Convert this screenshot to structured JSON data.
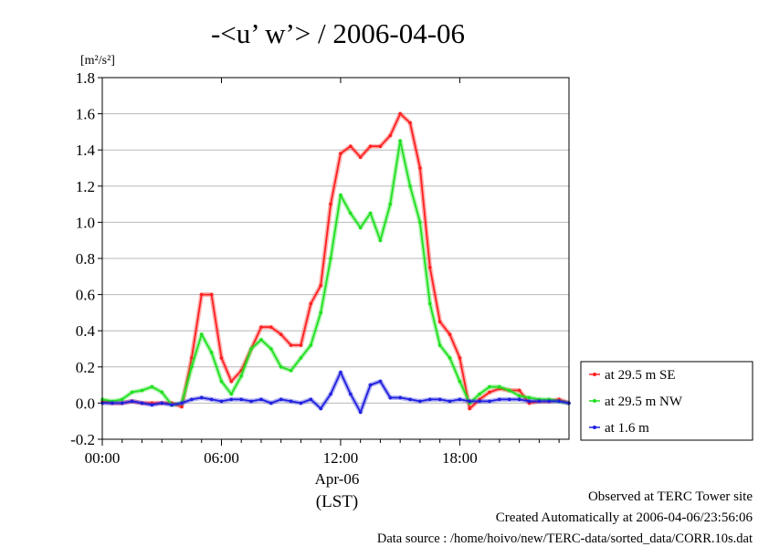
{
  "chart_data": {
    "type": "line",
    "title": "-<u’ w’> / 2006-04-06",
    "ylabel": "[m²/s²]",
    "xlabel": "Apr-06",
    "xlabel2": "(LST)",
    "ylim": [
      -0.2,
      1.8
    ],
    "xlim": [
      0,
      23.5
    ],
    "yticks": [
      "1.8",
      "1.6",
      "1.4",
      "1.2",
      "1.0",
      "0.8",
      "0.6",
      "0.4",
      "0.2",
      "0.0",
      "-0.2"
    ],
    "xticks": [
      "00:00",
      "06:00",
      "12:00",
      "18:00"
    ],
    "grid": true,
    "legend_position": "right",
    "x": [
      0,
      0.5,
      1,
      1.5,
      2,
      2.5,
      3,
      3.5,
      4,
      4.5,
      5,
      5.5,
      6,
      6.5,
      7,
      7.5,
      8,
      8.5,
      9,
      9.5,
      10,
      10.5,
      11,
      11.5,
      12,
      12.5,
      13,
      13.5,
      14,
      14.5,
      15,
      15.5,
      16,
      16.5,
      17,
      17.5,
      18,
      18.5,
      19,
      19.5,
      20,
      20.5,
      21,
      21.5,
      22,
      22.5,
      23,
      23.5
    ],
    "series": [
      {
        "name": "at 29.5 m SE",
        "color": "#ff2020",
        "values": [
          0.01,
          0.0,
          0.0,
          0.01,
          0.0,
          0.0,
          0.0,
          0.0,
          -0.02,
          0.25,
          0.6,
          0.6,
          0.25,
          0.12,
          0.18,
          0.3,
          0.42,
          0.42,
          0.38,
          0.32,
          0.32,
          0.55,
          0.65,
          1.1,
          1.38,
          1.42,
          1.36,
          1.42,
          1.42,
          1.48,
          1.6,
          1.55,
          1.3,
          0.75,
          0.45,
          0.38,
          0.25,
          -0.03,
          0.02,
          0.06,
          0.08,
          0.07,
          0.07,
          0.0,
          0.01,
          0.01,
          0.02,
          0.0
        ]
      },
      {
        "name": "at 29.5 m NW",
        "color": "#20e020",
        "values": [
          0.02,
          0.01,
          0.02,
          0.06,
          0.07,
          0.09,
          0.06,
          -0.01,
          0.0,
          0.2,
          0.38,
          0.28,
          0.12,
          0.05,
          0.15,
          0.3,
          0.35,
          0.3,
          0.2,
          0.18,
          0.25,
          0.32,
          0.5,
          0.8,
          1.15,
          1.05,
          0.97,
          1.05,
          0.9,
          1.1,
          1.45,
          1.2,
          1.0,
          0.55,
          0.32,
          0.25,
          0.12,
          0.0,
          0.05,
          0.09,
          0.09,
          0.07,
          0.04,
          0.03,
          0.02,
          0.02,
          0.01,
          0.0
        ]
      },
      {
        "name": "at 1.6 m",
        "color": "#2020e0",
        "values": [
          0.0,
          0.0,
          0.0,
          0.01,
          0.0,
          -0.01,
          0.0,
          -0.01,
          0.0,
          0.02,
          0.03,
          0.02,
          0.01,
          0.02,
          0.02,
          0.01,
          0.02,
          0.0,
          0.02,
          0.01,
          0.0,
          0.02,
          -0.03,
          0.05,
          0.17,
          0.05,
          -0.05,
          0.1,
          0.12,
          0.03,
          0.03,
          0.02,
          0.01,
          0.02,
          0.02,
          0.01,
          0.02,
          0.01,
          0.01,
          0.01,
          0.02,
          0.02,
          0.02,
          0.01,
          0.01,
          0.01,
          0.01,
          0.0
        ]
      }
    ]
  },
  "footer": {
    "line1": "Observed at TERC Tower site",
    "line2": "Created Automatically at 2006-04-06/23:56:06",
    "line3": "Data source : /home/hoivo/new/TERC-data/sorted_data/CORR.10s.dat"
  }
}
